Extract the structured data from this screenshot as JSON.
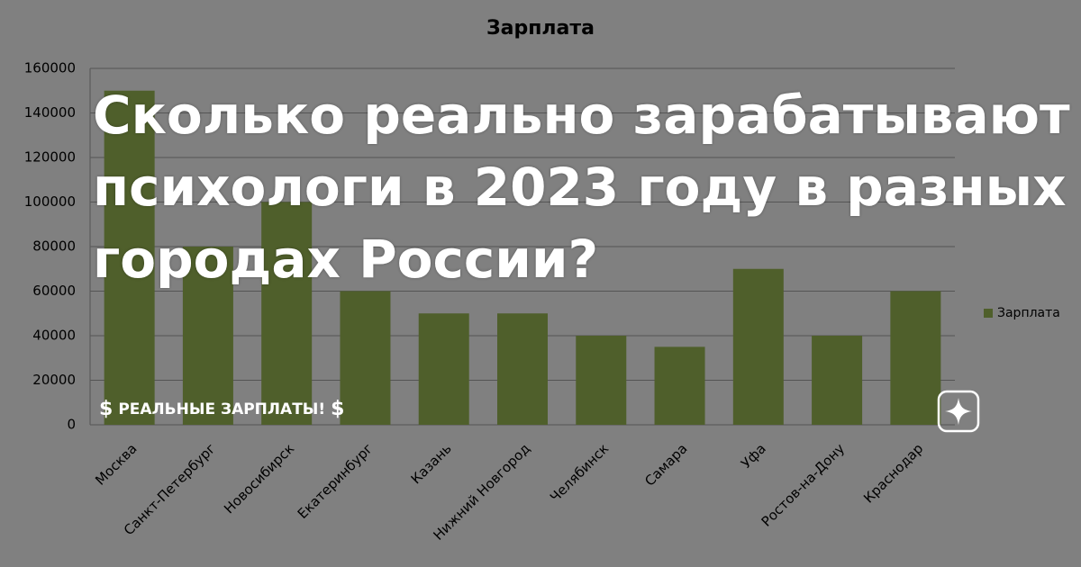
{
  "chart_data": {
    "type": "bar",
    "title": "Зарплата",
    "categories": [
      "Москва",
      "Санкт-Петербург",
      "Новосибирск",
      "Екатеринбург",
      "Казань",
      "Нижний Новгород",
      "Челябинск",
      "Самара",
      "Уфа",
      "Ростов-на-Дону",
      "Краснодар"
    ],
    "series": [
      {
        "name": "Зарплата",
        "color": "#4f5f2b",
        "values": [
          150000,
          80000,
          100000,
          60000,
          50000,
          50000,
          40000,
          35000,
          70000,
          40000,
          60000
        ]
      }
    ],
    "ylim": [
      0,
      160000
    ],
    "yticks": [
      0,
      20000,
      40000,
      60000,
      80000,
      100000,
      120000,
      140000,
      160000
    ],
    "grid": true,
    "legend": "right"
  },
  "overlay": {
    "headline": [
      "Сколько реально зарабатывают",
      "психологи в 2023 году в разных",
      "городах России?"
    ],
    "badge": "РЕАЛЬНЫЕ ЗАРПЛАТЫ!"
  }
}
